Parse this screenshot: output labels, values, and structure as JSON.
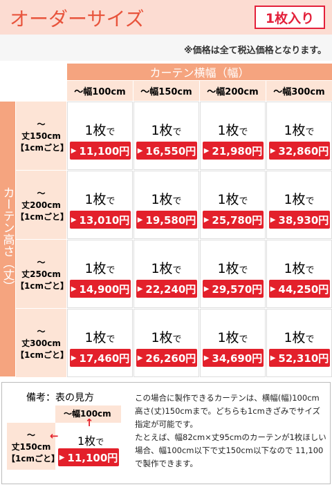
{
  "header": {
    "title": "オーダーサイズ",
    "badge": "1枚入り",
    "note": "※価格は全て税込価格となります。"
  },
  "table": {
    "column_title": "カーテン横幅（幅）",
    "row_title": "カーテン高さ（丈）",
    "columns": [
      "～幅100cm",
      "～幅150cm",
      "～幅200cm",
      "～幅300cm"
    ],
    "rows": [
      {
        "mark": "～",
        "height": "丈150cm",
        "step": "【1cmごと】",
        "cells": [
          {
            "count": "1枚",
            "suffix": "で",
            "price": "11,100円"
          },
          {
            "count": "1枚",
            "suffix": "で",
            "price": "16,550円"
          },
          {
            "count": "1枚",
            "suffix": "で",
            "price": "21,980円"
          },
          {
            "count": "1枚",
            "suffix": "で",
            "price": "32,860円"
          }
        ]
      },
      {
        "mark": "～",
        "height": "丈200cm",
        "step": "【1cmごと】",
        "cells": [
          {
            "count": "1枚",
            "suffix": "で",
            "price": "13,010円"
          },
          {
            "count": "1枚",
            "suffix": "で",
            "price": "19,580円"
          },
          {
            "count": "1枚",
            "suffix": "で",
            "price": "25,780円"
          },
          {
            "count": "1枚",
            "suffix": "で",
            "price": "38,930円"
          }
        ]
      },
      {
        "mark": "～",
        "height": "丈250cm",
        "step": "【1cmごと】",
        "cells": [
          {
            "count": "1枚",
            "suffix": "で",
            "price": "14,900円"
          },
          {
            "count": "1枚",
            "suffix": "で",
            "price": "22,240円"
          },
          {
            "count": "1枚",
            "suffix": "で",
            "price": "29,570円"
          },
          {
            "count": "1枚",
            "suffix": "で",
            "price": "44,250円"
          }
        ]
      },
      {
        "mark": "～",
        "height": "丈300cm",
        "step": "【1cmごと】",
        "cells": [
          {
            "count": "1枚",
            "suffix": "で",
            "price": "17,460円"
          },
          {
            "count": "1枚",
            "suffix": "で",
            "price": "26,260円"
          },
          {
            "count": "1枚",
            "suffix": "で",
            "price": "34,690円"
          },
          {
            "count": "1枚",
            "suffix": "で",
            "price": "52,310円"
          }
        ]
      }
    ]
  },
  "legend": {
    "title": "備考：表の見方",
    "column": "～幅100cm",
    "mark": "～",
    "height": "丈150cm",
    "step": "【1cmごと】",
    "count": "1枚",
    "suffix": "で",
    "price": "11,100円",
    "paragraphs": [
      "この場合に製作できるカーテンは、横幅(幅)100cm高さ(丈)150cmまで。どちらも1cmきざみでサイズ指定が可能です。",
      "たとえば、幅82cm×丈95cmのカーテンが1枚ほしい場合、幅100cm以下で丈150cm以下なので 11,100 で製作できます。"
    ]
  }
}
